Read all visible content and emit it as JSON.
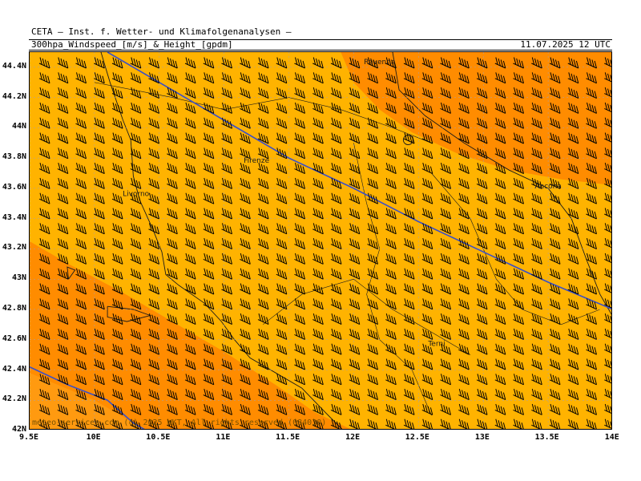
{
  "header": {
    "institute": "CETA — Inst. f. Wetter- und Klimafolgenanalysen —",
    "product": "300hpa_Windspeed_[m/s]_&_Height_[gpdm]",
    "valid_time": "11.07.2025 12 UTC"
  },
  "credit": "meteo-services.com (c) 2025 WKT, All rights reserved (084030)",
  "map": {
    "lon_range": [
      9.5,
      14.0
    ],
    "lat_range": [
      42.0,
      44.5
    ],
    "lat_ticks": [
      {
        "value": 44.4,
        "label": "44.4N"
      },
      {
        "value": 44.2,
        "label": "44.2N"
      },
      {
        "value": 44.0,
        "label": "44N"
      },
      {
        "value": 43.8,
        "label": "43.8N"
      },
      {
        "value": 43.6,
        "label": "43.6N"
      },
      {
        "value": 43.4,
        "label": "43.4N"
      },
      {
        "value": 43.2,
        "label": "43.2N"
      },
      {
        "value": 43.0,
        "label": "43N"
      },
      {
        "value": 42.8,
        "label": "42.8N"
      },
      {
        "value": 42.6,
        "label": "42.6N"
      },
      {
        "value": 42.4,
        "label": "42.4N"
      },
      {
        "value": 42.2,
        "label": "42.2N"
      },
      {
        "value": 42.0,
        "label": "42N"
      }
    ],
    "lon_ticks": [
      {
        "value": 9.5,
        "label": "9.5E"
      },
      {
        "value": 10.0,
        "label": "10E"
      },
      {
        "value": 10.5,
        "label": "10.5E"
      },
      {
        "value": 11.0,
        "label": "11E"
      },
      {
        "value": 11.5,
        "label": "11.5E"
      },
      {
        "value": 12.0,
        "label": "12E"
      },
      {
        "value": 12.5,
        "label": "12.5E"
      },
      {
        "value": 13.0,
        "label": "13E"
      },
      {
        "value": 13.5,
        "label": "13.5E"
      },
      {
        "value": 14.0,
        "label": "14E"
      }
    ],
    "cities": [
      {
        "name": "Ravenna",
        "lon": 12.2,
        "lat": 44.42
      },
      {
        "name": "Firenze",
        "lon": 11.25,
        "lat": 43.77
      },
      {
        "name": "Ancona",
        "lon": 13.5,
        "lat": 43.6
      },
      {
        "name": "Livorno",
        "lon": 10.32,
        "lat": 43.55
      },
      {
        "name": "Terni",
        "lon": 12.64,
        "lat": 42.56
      }
    ],
    "colors": {
      "wind_moderate": "#ffb300",
      "wind_strong": "#ff8c00",
      "height_contour": "#3a4fc8",
      "coastline": "#1a1a1a",
      "barb": "#000000",
      "grid": "#9aa0c0"
    },
    "wind_barb_direction": "from west-northwest"
  }
}
